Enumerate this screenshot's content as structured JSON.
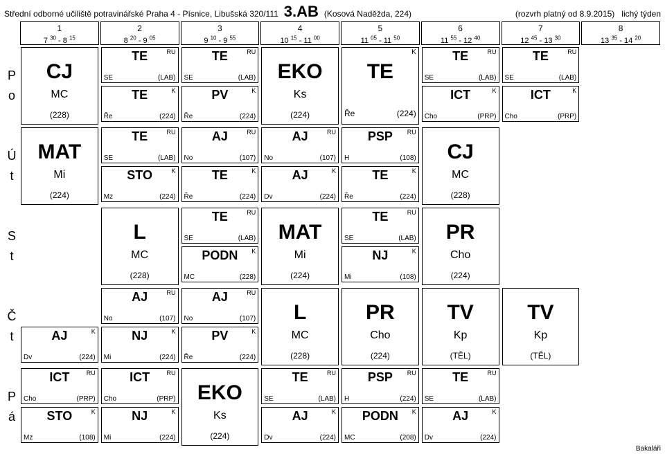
{
  "header": {
    "school": "Střední odborné učiliště potravinářské Praha 4 - Písnice, Libušská 320/111",
    "class": "3.AB",
    "teacher": "(Kosová Naděžda, 224)",
    "valid": "(rozvrh platný od 8.9.2015)",
    "week": "lichý týden"
  },
  "periods": [
    {
      "n": "1",
      "t1": "7",
      "s1": "30",
      "t2": "8",
      "s2": "15"
    },
    {
      "n": "2",
      "t1": "8",
      "s1": "20",
      "t2": "9",
      "s2": "05"
    },
    {
      "n": "3",
      "t1": "9",
      "s1": "10",
      "t2": "9",
      "s2": "55"
    },
    {
      "n": "4",
      "t1": "10",
      "s1": "15",
      "t2": "11",
      "s2": "00"
    },
    {
      "n": "5",
      "t1": "11",
      "s1": "05",
      "t2": "11",
      "s2": "50"
    },
    {
      "n": "6",
      "t1": "11",
      "s1": "55",
      "t2": "12",
      "s2": "40"
    },
    {
      "n": "7",
      "t1": "12",
      "s1": "45",
      "t2": "13",
      "s2": "30"
    },
    {
      "n": "8",
      "t1": "13",
      "s1": "35",
      "t2": "14",
      "s2": "20"
    }
  ],
  "days": [
    {
      "letters": [
        "P",
        "o"
      ]
    },
    {
      "letters": [
        "Ú",
        "t"
      ]
    },
    {
      "letters": [
        "S",
        "t"
      ]
    },
    {
      "letters": [
        "Č",
        "t"
      ]
    },
    {
      "letters": [
        "P",
        "á"
      ]
    }
  ],
  "cells": {
    "po": [
      {
        "type": "single",
        "subj": "CJ",
        "mid": "MC",
        "bot": "(228)"
      },
      {
        "type": "split",
        "top": {
          "tr": "RU",
          "subj": "TE",
          "l": "SE",
          "r": "(LAB)"
        },
        "bottom": {
          "tr": "K",
          "subj": "TE",
          "l": "Ře",
          "r": "(224)"
        }
      },
      {
        "type": "split",
        "top": {
          "tr": "RU",
          "subj": "TE",
          "l": "SE",
          "r": "(LAB)"
        },
        "bottom": {
          "tr": "K",
          "subj": "PV",
          "l": "Ře",
          "r": "(224)"
        }
      },
      {
        "type": "single",
        "subj": "EKO",
        "mid": "Ks",
        "bot": "(224)"
      },
      {
        "type": "split",
        "top": {
          "tr": "K",
          "subj": "TE",
          "l": "",
          "r": ""
        },
        "bottom": {
          "tr": "",
          "subj": "",
          "l": "Ře",
          "r": "(224)",
          "noborder": true
        },
        "merged": true
      },
      {
        "type": "split",
        "top": {
          "tr": "RU",
          "subj": "TE",
          "l": "SE",
          "r": "(LAB)"
        },
        "bottom": {
          "tr": "K",
          "subj": "ICT",
          "l": "Cho",
          "r": "(PRP)"
        }
      },
      {
        "type": "split",
        "top": {
          "tr": "RU",
          "subj": "TE",
          "l": "SE",
          "r": "(LAB)"
        },
        "bottom": {
          "tr": "K",
          "subj": "ICT",
          "l": "Cho",
          "r": "(PRP)"
        }
      },
      {
        "type": "empty"
      }
    ],
    "ut": [
      {
        "type": "single",
        "subj": "MAT",
        "mid": "Mi",
        "bot": "(224)"
      },
      {
        "type": "split",
        "top": {
          "tr": "RU",
          "subj": "TE",
          "l": "SE",
          "r": "(LAB)"
        },
        "bottom": {
          "tr": "K",
          "subj": "STO",
          "l": "Mz",
          "r": "(224)"
        }
      },
      {
        "type": "split",
        "top": {
          "tr": "RU",
          "subj": "AJ",
          "l": "No",
          "r": "(107)"
        },
        "bottom": {
          "tr": "K",
          "subj": "TE",
          "l": "Ře",
          "r": "(224)"
        }
      },
      {
        "type": "split",
        "top": {
          "tr": "RU",
          "subj": "AJ",
          "l": "No",
          "r": "(107)"
        },
        "bottom": {
          "tr": "K",
          "subj": "AJ",
          "l": "Dv",
          "r": "(224)"
        }
      },
      {
        "type": "split",
        "top": {
          "tr": "RU",
          "subj": "PSP",
          "l": "H",
          "r": "(108)"
        },
        "bottom": {
          "tr": "K",
          "subj": "TE",
          "l": "Ře",
          "r": "(224)"
        }
      },
      {
        "type": "single",
        "subj": "CJ",
        "mid": "MC",
        "bot": "(228)"
      },
      {
        "type": "empty"
      },
      {
        "type": "empty"
      }
    ],
    "st": [
      {
        "type": "empty"
      },
      {
        "type": "single",
        "subj": "L",
        "mid": "MC",
        "bot": "(228)"
      },
      {
        "type": "split",
        "top": {
          "tr": "RU",
          "subj": "TE",
          "l": "SE",
          "r": "(LAB)"
        },
        "bottom": {
          "tr": "K",
          "subj": "PODN",
          "l": "MC",
          "r": "(228)"
        }
      },
      {
        "type": "single",
        "subj": "MAT",
        "mid": "Mi",
        "bot": "(224)"
      },
      {
        "type": "split",
        "top": {
          "tr": "RU",
          "subj": "TE",
          "l": "SE",
          "r": "(LAB)"
        },
        "bottom": {
          "tr": "K",
          "subj": "NJ",
          "l": "Mi",
          "r": "(108)"
        }
      },
      {
        "type": "single",
        "subj": "PR",
        "mid": "Cho",
        "bot": "(224)"
      },
      {
        "type": "empty"
      },
      {
        "type": "empty"
      }
    ],
    "ct": [
      {
        "type": "halfbottom",
        "bottom": {
          "tr": "K",
          "subj": "AJ",
          "l": "Dv",
          "r": "(224)"
        }
      },
      {
        "type": "split",
        "top": {
          "tr": "RU",
          "subj": "AJ",
          "l": "No",
          "r": "(107)"
        },
        "bottom": {
          "tr": "K",
          "subj": "NJ",
          "l": "Mi",
          "r": "(224)"
        }
      },
      {
        "type": "split",
        "top": {
          "tr": "RU",
          "subj": "AJ",
          "l": "No",
          "r": "(107)"
        },
        "bottom": {
          "tr": "K",
          "subj": "PV",
          "l": "Ře",
          "r": "(224)"
        }
      },
      {
        "type": "single",
        "subj": "L",
        "mid": "MC",
        "bot": "(228)"
      },
      {
        "type": "single",
        "subj": "PR",
        "mid": "Cho",
        "bot": "(224)"
      },
      {
        "type": "single",
        "subj": "TV",
        "mid": "Kp",
        "bot": "(TĚL)"
      },
      {
        "type": "single",
        "subj": "TV",
        "mid": "Kp",
        "bot": "(TĚL)"
      },
      {
        "type": "empty"
      }
    ],
    "pa": [
      {
        "type": "split",
        "top": {
          "tr": "RU",
          "subj": "ICT",
          "l": "Cho",
          "r": "(PRP)"
        },
        "bottom": {
          "tr": "K",
          "subj": "STO",
          "l": "Mz",
          "r": "(108)"
        }
      },
      {
        "type": "split",
        "top": {
          "tr": "RU",
          "subj": "ICT",
          "l": "Cho",
          "r": "(PRP)"
        },
        "bottom": {
          "tr": "K",
          "subj": "NJ",
          "l": "Mi",
          "r": "(224)"
        }
      },
      {
        "type": "single",
        "subj": "EKO",
        "mid": "Ks",
        "bot": "(224)"
      },
      {
        "type": "split",
        "top": {
          "tr": "RU",
          "subj": "TE",
          "l": "SE",
          "r": "(LAB)"
        },
        "bottom": {
          "tr": "K",
          "subj": "AJ",
          "l": "Dv",
          "r": "(224)"
        }
      },
      {
        "type": "split",
        "top": {
          "tr": "RU",
          "subj": "PSP",
          "l": "H",
          "r": "(224)"
        },
        "bottom": {
          "tr": "K",
          "subj": "PODN",
          "l": "MC",
          "r": "(208)"
        }
      },
      {
        "type": "split",
        "top": {
          "tr": "RU",
          "subj": "TE",
          "l": "SE",
          "r": "(LAB)"
        },
        "bottom": {
          "tr": "K",
          "subj": "AJ",
          "l": "Dv",
          "r": "(224)"
        }
      },
      {
        "type": "empty"
      },
      {
        "type": "empty"
      }
    ]
  },
  "footer": {
    "brand": "Bakaláři"
  }
}
